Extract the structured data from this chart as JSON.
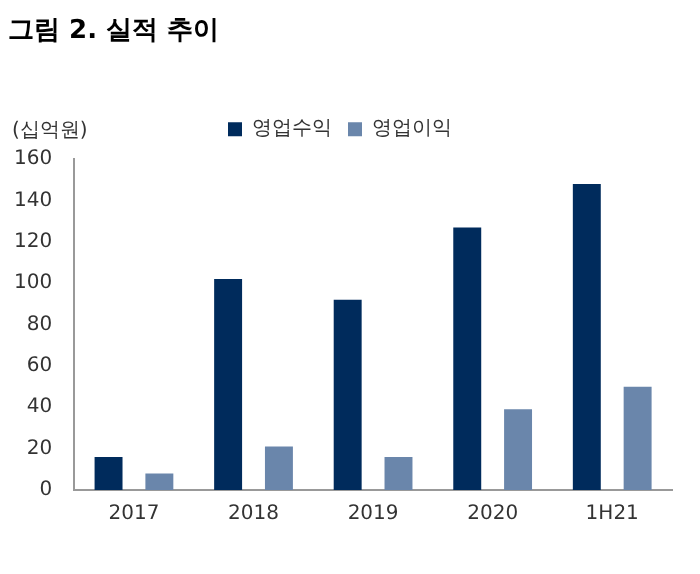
{
  "chart_data": {
    "type": "bar",
    "title": "그림 2. 실적 추이",
    "ylabel": "(십억원)",
    "categories": [
      "2017",
      "2018",
      "2019",
      "2020",
      "1H21"
    ],
    "series": [
      {
        "name": "영업수익",
        "color": "#002b5c",
        "values": [
          16,
          102,
          92,
          127,
          148
        ]
      },
      {
        "name": "영업이익",
        "color": "#6a86ab",
        "values": [
          8,
          21,
          16,
          39,
          50
        ]
      }
    ],
    "ylim": [
      0,
      160
    ],
    "yticks": [
      0,
      20,
      40,
      60,
      80,
      100,
      120,
      140,
      160
    ],
    "grid": false,
    "legend": "top"
  }
}
